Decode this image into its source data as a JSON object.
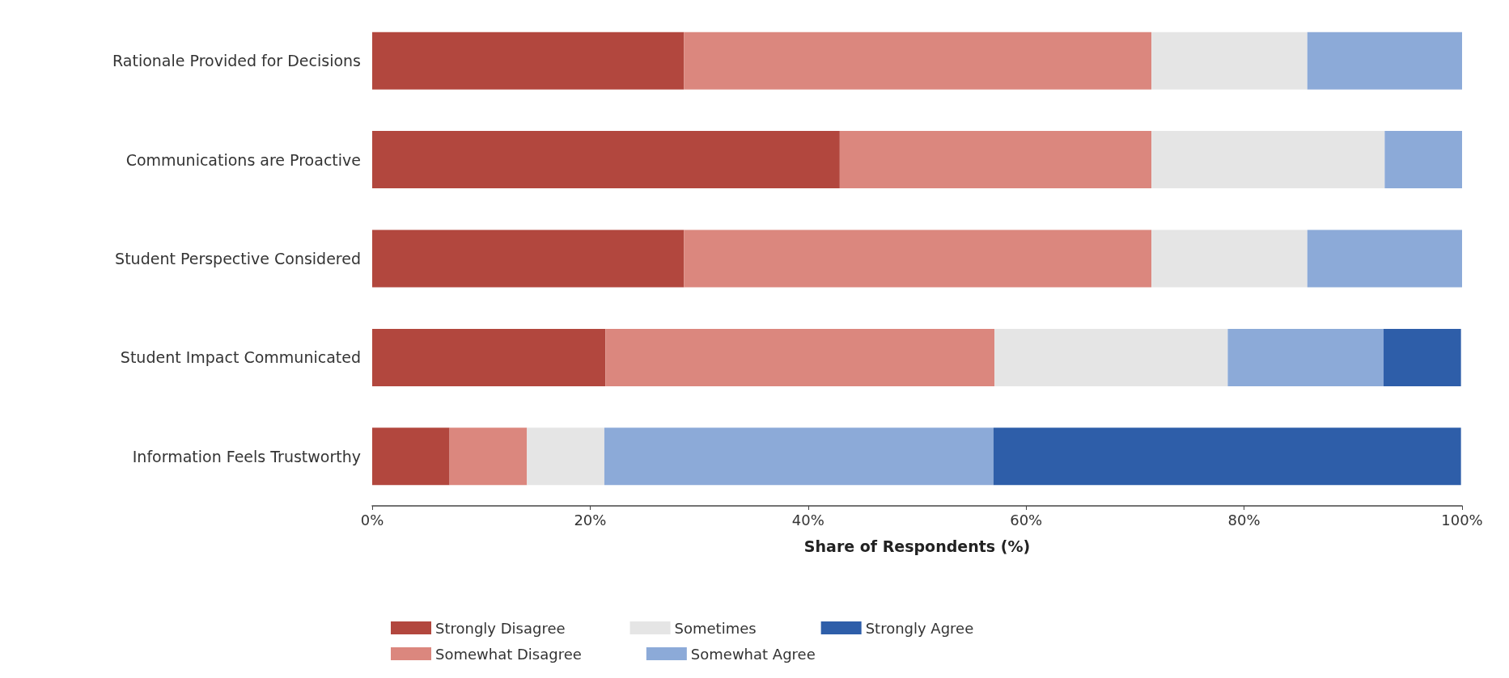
{
  "chart_data": {
    "type": "bar",
    "orientation": "horizontal",
    "stacked": true,
    "categories": [
      "Rationale Provided for Decisions",
      "Communications are Proactive",
      "Student Perspective Considered",
      "Student Impact Communicated",
      "Information Feels Trustworthy"
    ],
    "series": [
      {
        "name": "Strongly Disagree",
        "color": "#b2473e",
        "values": [
          28.6,
          42.9,
          28.6,
          21.4,
          7.1
        ]
      },
      {
        "name": "Somewhat Disagree",
        "color": "#db877e",
        "values": [
          42.9,
          28.6,
          42.9,
          35.7,
          7.1
        ]
      },
      {
        "name": "Sometimes",
        "color": "#e5e5e5",
        "values": [
          14.3,
          21.4,
          14.3,
          21.4,
          7.1
        ]
      },
      {
        "name": "Somewhat Agree",
        "color": "#8caad8",
        "values": [
          14.3,
          7.1,
          14.3,
          14.3,
          35.7
        ]
      },
      {
        "name": "Strongly Agree",
        "color": "#2e5ea9",
        "values": [
          0,
          0,
          0,
          7.1,
          42.9
        ]
      }
    ],
    "xlim": [
      0,
      100
    ],
    "xticks": [
      {
        "value": 0,
        "label": "0%"
      },
      {
        "value": 20,
        "label": "20%"
      },
      {
        "value": 40,
        "label": "40%"
      },
      {
        "value": 60,
        "label": "60%"
      },
      {
        "value": 80,
        "label": "80%"
      },
      {
        "value": 100,
        "label": "100%"
      }
    ],
    "xlabel": "Share of Respondents (%)",
    "grid": false,
    "legend": "bottom"
  }
}
